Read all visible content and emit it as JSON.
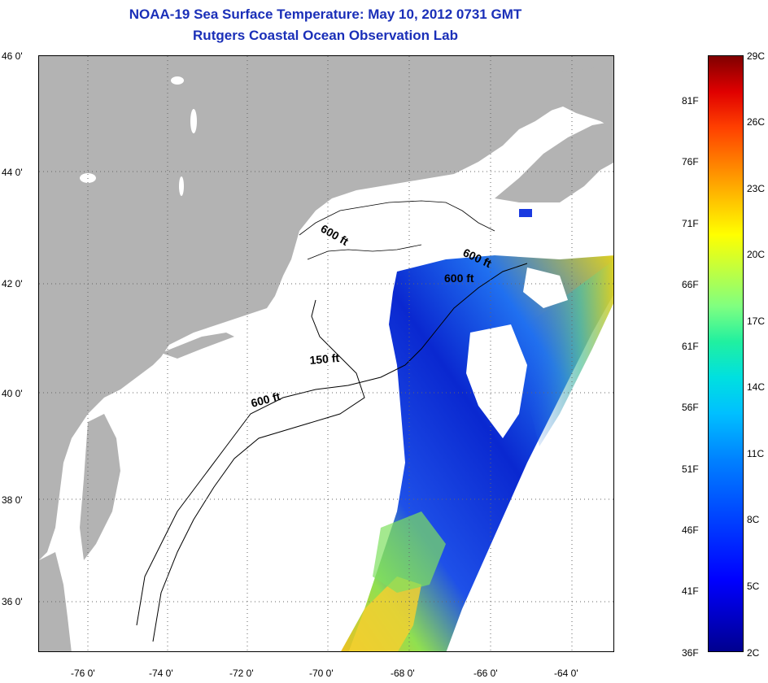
{
  "title": {
    "line1": "NOAA-19 Sea Surface Temperature:  May 10, 2012 0731 GMT",
    "line2": "Rutgers Coastal Ocean Observation Lab"
  },
  "map": {
    "lat_labels": [
      "46 0'",
      "44 0'",
      "42 0'",
      "40 0'",
      "38 0'",
      "36 0'"
    ],
    "lon_labels": [
      "-76 0'",
      "-74 0'",
      "-72 0'",
      "-70 0'",
      "-68 0'",
      "-66 0'",
      "-64 0'"
    ],
    "contour_labels": [
      {
        "text": "600 ft",
        "rotate": 30
      },
      {
        "text": "600 ft",
        "rotate": 25
      },
      {
        "text": "600 ft",
        "rotate": 0
      },
      {
        "text": "150 ft",
        "rotate": -5
      },
      {
        "text": "600 ft",
        "rotate": -15
      }
    ],
    "colors": {
      "land": "#b3b3b3",
      "grid": "#666666",
      "ocean_no_data": "#ffffff",
      "cold": "#0a2ad8",
      "warm": "#f0e020"
    }
  },
  "colorbar": {
    "fahrenheit_labels": [
      "81F",
      "76F",
      "71F",
      "66F",
      "61F",
      "56F",
      "51F",
      "46F",
      "41F",
      "36F"
    ],
    "celsius_labels": [
      "29C",
      "26C",
      "23C",
      "20C",
      "17C",
      "14C",
      "11C",
      "8C",
      "5C",
      "2C"
    ]
  }
}
